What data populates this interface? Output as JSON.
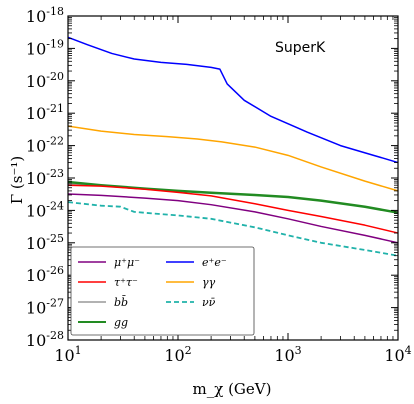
{
  "chart_data": {
    "type": "line",
    "annotation": "SuperK",
    "xlabel": "m_χ (GeV)",
    "ylabel": "Γ (s⁻¹)",
    "x_scale": "log",
    "y_scale": "log",
    "xlim": [
      10,
      10000
    ],
    "ylim": [
      1e-28,
      1e-18
    ],
    "grid": false,
    "legend_position": "bottom-left",
    "x_ticks": [
      {
        "base": "10",
        "exp": "1",
        "value": 10
      },
      {
        "base": "10",
        "exp": "2",
        "value": 100
      },
      {
        "base": "10",
        "exp": "3",
        "value": 1000
      },
      {
        "base": "10",
        "exp": "4",
        "value": 10000
      }
    ],
    "y_ticks": [
      {
        "base": "10",
        "exp": "-18",
        "value": 1e-18
      },
      {
        "base": "10",
        "exp": "-19",
        "value": 1e-19
      },
      {
        "base": "10",
        "exp": "-20",
        "value": 1e-20
      },
      {
        "base": "10",
        "exp": "-21",
        "value": 1e-21
      },
      {
        "base": "10",
        "exp": "-22",
        "value": 1e-22
      },
      {
        "base": "10",
        "exp": "-23",
        "value": 1e-23
      },
      {
        "base": "10",
        "exp": "-24",
        "value": 1e-24
      },
      {
        "base": "10",
        "exp": "-25",
        "value": 1e-25
      },
      {
        "base": "10",
        "exp": "-26",
        "value": 1e-26
      },
      {
        "base": "10",
        "exp": "-27",
        "value": 1e-27
      },
      {
        "base": "10",
        "exp": "-28",
        "value": 1e-28
      }
    ],
    "series": [
      {
        "name": "e⁺e⁻",
        "color": "#0000ff",
        "style": "solid",
        "width": 1.5,
        "x": [
          10,
          15,
          25,
          40,
          70,
          120,
          200,
          240,
          280,
          400,
          700,
          1500,
          3000,
          6000,
          10000
        ],
        "y": [
          2.2e-19,
          1.3e-19,
          7e-20,
          4.7e-20,
          3.7e-20,
          3.2e-20,
          2.6e-20,
          2.3e-20,
          8e-21,
          2.5e-21,
          8e-22,
          2.6e-22,
          1e-22,
          5e-23,
          3e-23
        ]
      },
      {
        "name": "γγ",
        "color": "#ffa500",
        "style": "solid",
        "width": 1.5,
        "x": [
          10,
          20,
          40,
          80,
          150,
          250,
          500,
          1000,
          2000,
          5000,
          10000
        ],
        "y": [
          4e-22,
          2.8e-22,
          2.2e-22,
          1.9e-22,
          1.6e-22,
          1.3e-22,
          9e-23,
          5e-23,
          2.2e-23,
          8e-24,
          4e-24
        ]
      },
      {
        "name": "gg",
        "color": "#228b22",
        "style": "solid",
        "width": 2.5,
        "x": [
          10,
          20,
          50,
          100,
          200,
          500,
          1000,
          2000,
          5000,
          10000
        ],
        "y": [
          7.5e-24,
          6e-24,
          4.7e-24,
          4e-24,
          3.5e-24,
          3e-24,
          2.6e-24,
          2e-24,
          1.3e-24,
          8.5e-25
        ]
      },
      {
        "name": "bb̄",
        "color": "#999999",
        "style": "solid",
        "width": 1.5,
        "x": [
          10,
          20,
          50,
          100,
          200,
          500,
          1000,
          2000,
          5000,
          10000
        ],
        "y": [
          6.5e-24,
          5.7e-24,
          4.6e-24,
          4e-24,
          3.5e-24,
          3e-24,
          2.6e-24,
          2e-24,
          1.3e-24,
          8.5e-25
        ]
      },
      {
        "name": "τ⁺τ⁻",
        "color": "#ff0000",
        "style": "solid",
        "width": 1.5,
        "x": [
          10,
          20,
          50,
          100,
          200,
          500,
          1000,
          2000,
          5000,
          10000
        ],
        "y": [
          6e-24,
          5.6e-24,
          4.5e-24,
          3.6e-24,
          2.8e-24,
          1.6e-24,
          1e-24,
          6.5e-25,
          3.5e-25,
          2e-25
        ]
      },
      {
        "name": "μ⁺μ⁻",
        "color": "#800080",
        "style": "solid",
        "width": 1.5,
        "x": [
          10,
          20,
          50,
          100,
          200,
          500,
          1000,
          2000,
          5000,
          10000
        ],
        "y": [
          3.2e-24,
          2.9e-24,
          2.4e-24,
          2e-24,
          1.5e-24,
          9e-25,
          5.5e-25,
          3.2e-25,
          1.7e-25,
          1e-25
        ]
      },
      {
        "name": "νν̄",
        "color": "#20b2aa",
        "style": "dashed",
        "width": 1.8,
        "x": [
          10,
          20,
          30,
          40,
          60,
          100,
          200,
          500,
          1000,
          2000,
          5000,
          10000
        ],
        "y": [
          1.8e-24,
          1.4e-24,
          1.3e-24,
          9e-25,
          8e-25,
          7e-25,
          5.5e-25,
          3e-25,
          1.7e-25,
          1e-25,
          6e-26,
          4e-26
        ]
      }
    ],
    "legend_order": [
      "μ⁺μ⁻",
      "e⁺e⁻",
      "τ⁺τ⁻",
      "γγ",
      "bb̄",
      "νν̄",
      "gg"
    ]
  }
}
